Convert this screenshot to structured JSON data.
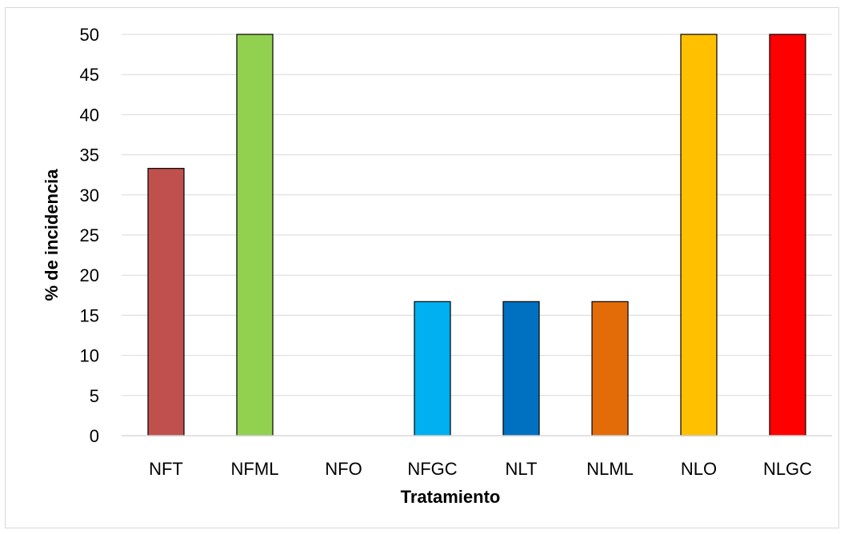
{
  "chart_data": {
    "type": "bar",
    "categories": [
      "NFT",
      "NFML",
      "NFO",
      "NFGC",
      "NLT",
      "NLML",
      "NLO",
      "NLGC"
    ],
    "values": [
      33.3,
      50,
      0,
      16.7,
      16.7,
      16.7,
      50,
      50
    ],
    "bar_colors": [
      "#C0504D",
      "#92D050",
      "#A5A5A5",
      "#00B0F0",
      "#0070C0",
      "#E36C09",
      "#FFC000",
      "#FF0000"
    ],
    "title": "",
    "xlabel": "Tratamiento",
    "ylabel": "% de incidencia",
    "ylim": [
      0,
      50
    ],
    "yticks": [
      "0",
      "5",
      "10",
      "15",
      "20",
      "25",
      "30",
      "35",
      "40",
      "45",
      "50"
    ],
    "grid": true,
    "legend": "none"
  }
}
